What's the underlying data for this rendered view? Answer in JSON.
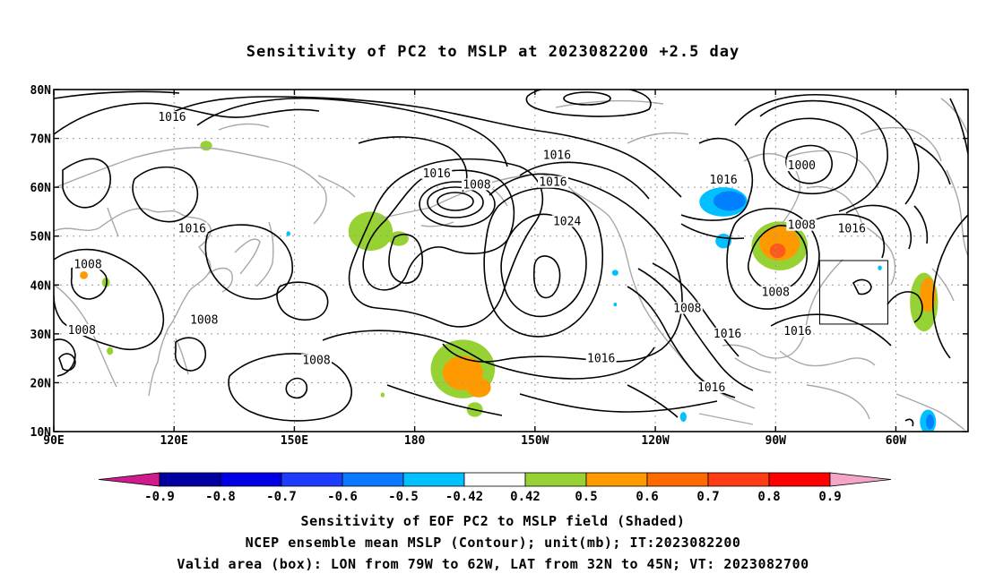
{
  "title": "Sensitivity of PC2 to MSLP at 2023082200 +2.5 day",
  "map": {
    "lat_labels": [
      "80N",
      "70N",
      "60N",
      "50N",
      "40N",
      "30N",
      "20N",
      "10N"
    ],
    "lon_labels": [
      "90E",
      "120E",
      "150E",
      "180",
      "150W",
      "120W",
      "90W",
      "60W"
    ],
    "valid_box": {
      "lon": [
        -79,
        -62
      ],
      "lat": [
        32,
        45
      ]
    },
    "contour_labels": [
      {
        "text": "1016",
        "lon": 119.5,
        "lat": 74.3
      },
      {
        "text": "1016",
        "lon": -144.5,
        "lat": 66.5
      },
      {
        "text": "1016",
        "lon": -174.5,
        "lat": 62.8
      },
      {
        "text": "1008",
        "lon": -164.5,
        "lat": 60.5
      },
      {
        "text": "1016",
        "lon": -145.5,
        "lat": 61.0
      },
      {
        "text": "1024",
        "lon": -142.0,
        "lat": 53.0
      },
      {
        "text": "1016",
        "lon": -103.0,
        "lat": 61.5
      },
      {
        "text": "1000",
        "lon": -83.5,
        "lat": 64.4
      },
      {
        "text": "1008",
        "lon": -83.5,
        "lat": 52.2
      },
      {
        "text": "1016",
        "lon": -71.0,
        "lat": 51.5
      },
      {
        "text": "1008",
        "lon": -90.0,
        "lat": 38.5
      },
      {
        "text": "1016",
        "lon": -84.5,
        "lat": 30.5
      },
      {
        "text": "1016",
        "lon": -102.0,
        "lat": 30.0
      },
      {
        "text": "1008",
        "lon": -112.0,
        "lat": 35.2
      },
      {
        "text": "1016",
        "lon": -133.5,
        "lat": 24.9
      },
      {
        "text": "1016",
        "lon": -106.0,
        "lat": 19.0
      },
      {
        "text": "1016",
        "lon": 124.5,
        "lat": 51.5
      },
      {
        "text": "1008",
        "lon": 98.5,
        "lat": 44.2
      },
      {
        "text": "1008",
        "lon": 97.0,
        "lat": 30.7
      },
      {
        "text": "1008",
        "lon": 127.5,
        "lat": 32.8
      },
      {
        "text": "1008",
        "lon": 155.5,
        "lat": 24.6
      }
    ],
    "shaded_regions": [
      {
        "lon": -168.0,
        "lat": 22.8,
        "rx": 8,
        "ry": 6,
        "color": "#97d234"
      },
      {
        "lon": -168.0,
        "lat": 22.0,
        "rx": 5,
        "ry": 3.5,
        "color": "#ff9900"
      },
      {
        "lon": -164.0,
        "lat": 19.0,
        "rx": 3,
        "ry": 2,
        "color": "#ff9900"
      },
      {
        "lon": -165.0,
        "lat": 14.5,
        "rx": 2,
        "ry": 1.5,
        "color": "#97d234"
      },
      {
        "lon": -89.0,
        "lat": 48.0,
        "rx": 7,
        "ry": 5,
        "color": "#97d234"
      },
      {
        "lon": -89.0,
        "lat": 48.5,
        "rx": 5,
        "ry": 3.5,
        "color": "#ff9900"
      },
      {
        "lon": -89.5,
        "lat": 47.0,
        "rx": 2,
        "ry": 1.5,
        "color": "#ff5a1e"
      },
      {
        "lon": -103.0,
        "lat": 57.0,
        "rx": 6,
        "ry": 3,
        "color": "#00c0ff"
      },
      {
        "lon": -101.5,
        "lat": 57.2,
        "rx": 4,
        "ry": 2,
        "color": "#0080ff"
      },
      {
        "lon": -103.0,
        "lat": 49.0,
        "rx": 2,
        "ry": 1.5,
        "color": "#00c0ff"
      },
      {
        "lon": 169.0,
        "lat": 51.0,
        "rx": 5.5,
        "ry": 4,
        "color": "#97d234"
      },
      {
        "lon": 176.0,
        "lat": 49.5,
        "rx": 2.5,
        "ry": 1.5,
        "color": "#97d234"
      },
      {
        "lon": 128.0,
        "lat": 68.5,
        "rx": 1.5,
        "ry": 1,
        "color": "#97d234"
      },
      {
        "lon": -53.0,
        "lat": 36.5,
        "rx": 3.5,
        "ry": 6,
        "color": "#97d234"
      },
      {
        "lon": -52.0,
        "lat": 38.0,
        "rx": 2,
        "ry": 3.5,
        "color": "#ff9900"
      },
      {
        "lon": -52.0,
        "lat": 12.0,
        "rx": 2,
        "ry": 2.5,
        "color": "#00c0ff"
      },
      {
        "lon": -51.5,
        "lat": 12.0,
        "rx": 1,
        "ry": 1.5,
        "color": "#0080ff"
      },
      {
        "lon": 103.0,
        "lat": 40.5,
        "rx": 1,
        "ry": 1,
        "color": "#97d234"
      },
      {
        "lon": 97.5,
        "lat": 42.0,
        "rx": 1,
        "ry": 0.8,
        "color": "#ff9900"
      },
      {
        "lon": 104.0,
        "lat": 26.5,
        "rx": 0.8,
        "ry": 0.8,
        "color": "#97d234"
      },
      {
        "lon": -130.0,
        "lat": 42.5,
        "rx": 0.8,
        "ry": 0.6,
        "color": "#00c0ff"
      },
      {
        "lon": -113.0,
        "lat": 13.0,
        "rx": 0.8,
        "ry": 1,
        "color": "#00c0ff"
      },
      {
        "lon": 148.5,
        "lat": 50.5,
        "rx": 0.5,
        "ry": 0.5,
        "color": "#00c0ff"
      },
      {
        "lon": -130.0,
        "lat": 36.0,
        "rx": 0.4,
        "ry": 0.4,
        "color": "#00c0ff"
      },
      {
        "lon": 172.0,
        "lat": 17.5,
        "rx": 0.5,
        "ry": 0.5,
        "color": "#97d234"
      },
      {
        "lon": -64.0,
        "lat": 43.5,
        "rx": 0.5,
        "ry": 0.5,
        "color": "#00c0ff"
      }
    ]
  },
  "colorbar": {
    "labels": [
      "-0.9",
      "-0.8",
      "-0.7",
      "-0.6",
      "-0.5",
      "-0.42",
      "0.42",
      "0.5",
      "0.6",
      "0.7",
      "0.8",
      "0.9"
    ],
    "colors": [
      "#0000a0",
      "#0000e6",
      "#1e3cff",
      "#0a78ff",
      "#00c0ff",
      "#ffffff",
      "#97d234",
      "#ff9900",
      "#ff6a00",
      "#ff3c14",
      "#ff0000"
    ],
    "low_end_color": "#d01c8b",
    "high_end_color": "#f4a6c6"
  },
  "footer": {
    "line1": "Sensitivity of EOF PC2 to MSLP field (Shaded)",
    "line2": "NCEP ensemble mean MSLP (Contour); unit(mb); IT:2023082200",
    "line3": "Valid area (box): LON from 79W to 62W, LAT from 32N to 45N; VT: 2023082700"
  }
}
